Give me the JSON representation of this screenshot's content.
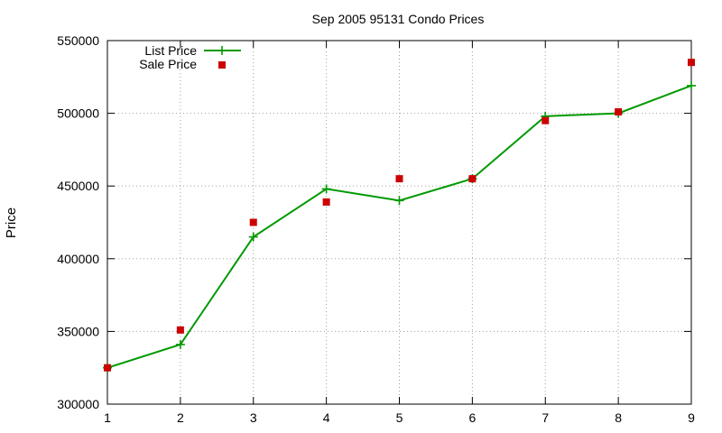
{
  "chart_data": {
    "type": "line",
    "title": "Sep 2005 95131 Condo Prices",
    "xlabel": "",
    "ylabel": "Price",
    "x": [
      1,
      2,
      3,
      4,
      5,
      6,
      7,
      8,
      9
    ],
    "xlim": [
      1,
      9
    ],
    "ylim": [
      300000,
      550000
    ],
    "xticks": [
      "1",
      "2",
      "3",
      "4",
      "5",
      "6",
      "7",
      "8",
      "9"
    ],
    "yticks": [
      "300000",
      "350000",
      "400000",
      "450000",
      "500000",
      "550000"
    ],
    "grid": true,
    "legend_position": "top-left",
    "series": [
      {
        "name": "List Price",
        "style": "line-with-plus-markers",
        "color": "#009900",
        "values": [
          325000,
          341000,
          415000,
          448000,
          440000,
          455000,
          498000,
          500000,
          519000
        ]
      },
      {
        "name": "Sale Price",
        "style": "square-markers",
        "color": "#cc0000",
        "values": [
          325000,
          351000,
          425000,
          439000,
          455000,
          455000,
          495000,
          501000,
          535000
        ]
      }
    ]
  }
}
